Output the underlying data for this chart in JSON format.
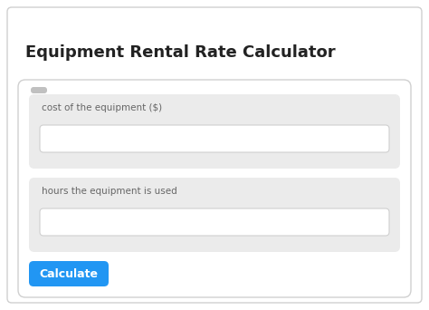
{
  "title": "Equipment Rental Rate Calculator",
  "title_fontsize": 13,
  "title_color": "#222222",
  "label1": "cost of the equipment ($)",
  "label2": "hours the equipment is used",
  "button_text": "Calculate",
  "bg_color": "#ffffff",
  "outer_border_color": "#d0d0d0",
  "card_bg": "#ebebeb",
  "input_bg": "#ffffff",
  "input_border": "#d0d0d0",
  "button_bg": "#2196f3",
  "button_text_color": "#ffffff",
  "label_color": "#666666",
  "label_fontsize": 7.5,
  "scroll_color": "#c0c0c0"
}
